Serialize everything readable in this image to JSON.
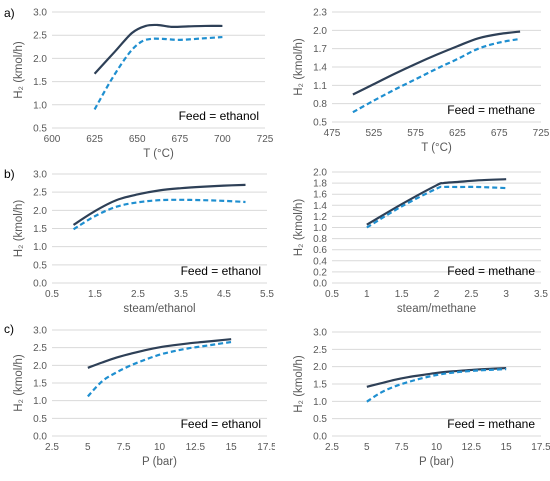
{
  "row_labels": [
    "a)",
    "b)",
    "c)"
  ],
  "colors": {
    "solid": "#2e4057",
    "dashed": "#1f8fd0",
    "grid": "#d9d9d9",
    "text": "#595959",
    "annotation": "#000000"
  },
  "chart_data": [
    {
      "type": "line",
      "xlabel": "T (°C)",
      "ylabel": "H₂ (kmol/h)",
      "annotation": "Feed = ethanol",
      "xlim": [
        600,
        725
      ],
      "xticks": [
        600,
        625,
        650,
        675,
        700,
        725
      ],
      "ylim": [
        0.5,
        3.0
      ],
      "yticks": [
        0.5,
        1.0,
        1.5,
        2.0,
        2.5,
        3.0
      ],
      "ydec": 1,
      "grid": "horizontal",
      "series": [
        {
          "style": "solid",
          "x": [
            625,
            637,
            647,
            655,
            662,
            670,
            680,
            690,
            700
          ],
          "y": [
            1.67,
            2.15,
            2.55,
            2.7,
            2.72,
            2.68,
            2.69,
            2.7,
            2.7
          ]
        },
        {
          "style": "dashed",
          "x": [
            625,
            635,
            645,
            652,
            658,
            665,
            675,
            688,
            700
          ],
          "y": [
            0.9,
            1.55,
            2.1,
            2.35,
            2.42,
            2.42,
            2.4,
            2.43,
            2.46
          ]
        }
      ]
    },
    {
      "type": "line",
      "xlabel": "T (°C)",
      "ylabel": "H₂ (kmol/h)",
      "annotation": "Feed = methane",
      "xlim": [
        475,
        725
      ],
      "xticks": [
        475,
        525,
        575,
        625,
        675,
        725
      ],
      "ylim": [
        0.5,
        2.3
      ],
      "yticks": [
        0.5,
        0.8,
        1.1,
        1.4,
        1.7,
        2.0,
        2.3
      ],
      "ydec": 1,
      "grid": "horizontal",
      "series": [
        {
          "style": "solid",
          "x": [
            500,
            525,
            550,
            575,
            600,
            625,
            650,
            675,
            700
          ],
          "y": [
            0.95,
            1.12,
            1.29,
            1.45,
            1.6,
            1.74,
            1.87,
            1.94,
            1.98
          ]
        },
        {
          "style": "dashed",
          "x": [
            500,
            525,
            550,
            575,
            600,
            625,
            650,
            675,
            700
          ],
          "y": [
            0.66,
            0.85,
            1.03,
            1.2,
            1.37,
            1.53,
            1.7,
            1.8,
            1.86
          ]
        }
      ]
    },
    {
      "type": "line",
      "xlabel": "steam/ethanol",
      "ylabel": "H₂ (kmol/h)",
      "annotation": "Feed = ethanol",
      "xlim": [
        0.5,
        5.5
      ],
      "xticks": [
        0.5,
        1.5,
        2.5,
        3.5,
        4.5,
        5.5
      ],
      "ylim": [
        0.0,
        3.0
      ],
      "yticks": [
        0.0,
        0.5,
        1.0,
        1.5,
        2.0,
        2.5,
        3.0
      ],
      "ydec": 1,
      "grid": "horizontal",
      "series": [
        {
          "style": "solid",
          "x": [
            1.0,
            1.5,
            2.0,
            2.5,
            3.0,
            3.5,
            4.0,
            4.5,
            5.0
          ],
          "y": [
            1.6,
            1.98,
            2.28,
            2.44,
            2.55,
            2.61,
            2.65,
            2.68,
            2.7
          ]
        },
        {
          "style": "dashed",
          "x": [
            1.0,
            1.5,
            2.0,
            2.5,
            3.0,
            3.5,
            4.0,
            4.5,
            5.0
          ],
          "y": [
            1.48,
            1.84,
            2.1,
            2.22,
            2.28,
            2.29,
            2.28,
            2.26,
            2.23
          ]
        }
      ]
    },
    {
      "type": "line",
      "xlabel": "steam/methane",
      "ylabel": "H₂ (kmol/h)",
      "annotation": "Feed = methane",
      "xlim": [
        0.5,
        3.5
      ],
      "xticks": [
        0.5,
        1.0,
        1.5,
        2.0,
        2.5,
        3.0,
        3.5
      ],
      "ylim": [
        0.0,
        2.0
      ],
      "yticks": [
        0.0,
        0.2,
        0.4,
        0.6,
        0.8,
        1.0,
        1.2,
        1.4,
        1.6,
        1.8,
        2.0
      ],
      "ydec": 1,
      "grid": "horizontal",
      "series": [
        {
          "style": "solid",
          "x": [
            1.0,
            1.5,
            2.0,
            2.1,
            2.3,
            2.6,
            3.0
          ],
          "y": [
            1.05,
            1.42,
            1.76,
            1.8,
            1.82,
            1.85,
            1.87
          ]
        },
        {
          "style": "dashed",
          "x": [
            1.0,
            1.5,
            2.0,
            2.1,
            2.3,
            2.6,
            3.0
          ],
          "y": [
            1.0,
            1.38,
            1.7,
            1.73,
            1.73,
            1.73,
            1.71
          ]
        }
      ]
    },
    {
      "type": "line",
      "xlabel": "P (bar)",
      "ylabel": "H₂ (kmol/h)",
      "annotation": "Feed = ethanol",
      "xlim": [
        2.5,
        17.5
      ],
      "xticks": [
        2.5,
        5.0,
        7.5,
        10.0,
        12.5,
        15.0,
        17.5
      ],
      "ylim": [
        0.0,
        3.0
      ],
      "yticks": [
        0.0,
        0.5,
        1.0,
        1.5,
        2.0,
        2.5,
        3.0
      ],
      "ydec": 1,
      "grid": "horizontal",
      "series": [
        {
          "style": "solid",
          "x": [
            5,
            6,
            7,
            8,
            9,
            10,
            11,
            12,
            13,
            14,
            15
          ],
          "y": [
            1.93,
            2.08,
            2.22,
            2.33,
            2.43,
            2.51,
            2.57,
            2.62,
            2.66,
            2.7,
            2.74
          ]
        },
        {
          "style": "dashed",
          "x": [
            5,
            6,
            7,
            8,
            9,
            10,
            11,
            12,
            13,
            14,
            15
          ],
          "y": [
            1.12,
            1.55,
            1.8,
            2.0,
            2.16,
            2.3,
            2.4,
            2.48,
            2.54,
            2.6,
            2.66
          ]
        }
      ]
    },
    {
      "type": "line",
      "xlabel": "P (bar)",
      "ylabel": "H₂ (kmol/h)",
      "annotation": "Feed = methane",
      "xlim": [
        2.5,
        17.5
      ],
      "xticks": [
        2.5,
        5.0,
        7.5,
        10.0,
        12.5,
        15.0,
        17.5
      ],
      "ylim": [
        0.0,
        3.0
      ],
      "yticks": [
        0.0,
        0.5,
        1.0,
        1.5,
        2.0,
        2.5,
        3.0
      ],
      "ydec": 1,
      "grid": "horizontal",
      "series": [
        {
          "style": "solid",
          "x": [
            5,
            6,
            7,
            8,
            9,
            10,
            11,
            12,
            13,
            14,
            15
          ],
          "y": [
            1.42,
            1.52,
            1.62,
            1.7,
            1.76,
            1.82,
            1.86,
            1.89,
            1.92,
            1.94,
            1.96
          ]
        },
        {
          "style": "dashed",
          "x": [
            5,
            6,
            7,
            8,
            9,
            10,
            11,
            12,
            13,
            14,
            15
          ],
          "y": [
            0.99,
            1.25,
            1.43,
            1.56,
            1.67,
            1.76,
            1.82,
            1.86,
            1.89,
            1.91,
            1.93
          ]
        }
      ]
    }
  ]
}
